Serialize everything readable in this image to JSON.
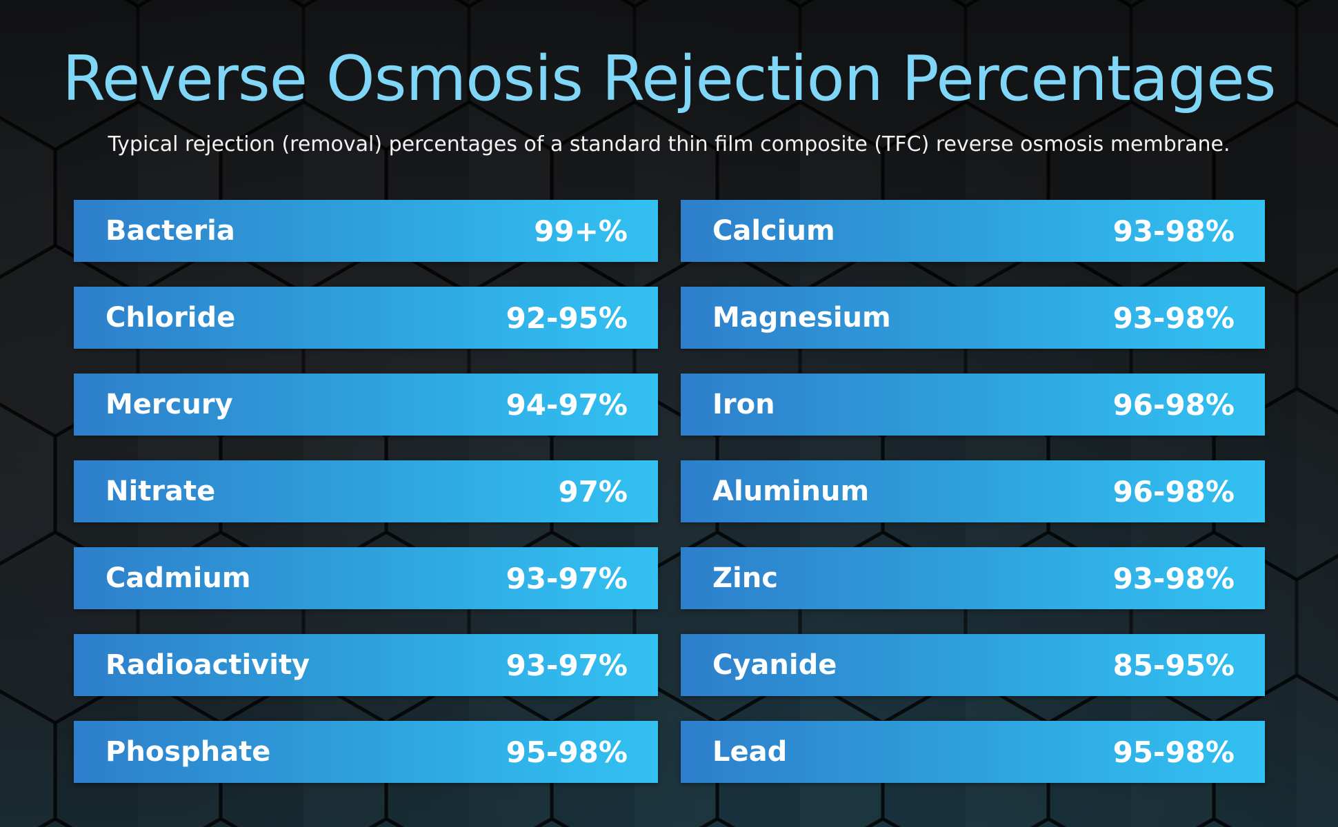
{
  "header": {
    "title": "Reverse Osmosis Rejection Percentages",
    "subtitle": "Typical rejection (removal) percentages of a standard thin film composite (TFC) reverse osmosis membrane."
  },
  "theme": {
    "title_color": "#7fd6f6",
    "row_gradient_start": "#2e7fcb",
    "row_gradient_end": "#33c1f1",
    "background": "#121416"
  },
  "left_column": [
    {
      "name": "Bacteria",
      "value": "99+%"
    },
    {
      "name": "Chloride",
      "value": "92-95%"
    },
    {
      "name": "Mercury",
      "value": "94-97%"
    },
    {
      "name": "Nitrate",
      "value": "97%"
    },
    {
      "name": "Cadmium",
      "value": "93-97%"
    },
    {
      "name": "Radioactivity",
      "value": "93-97%"
    },
    {
      "name": "Phosphate",
      "value": "95-98%"
    }
  ],
  "right_column": [
    {
      "name": "Calcium",
      "value": "93-98%"
    },
    {
      "name": "Magnesium",
      "value": "93-98%"
    },
    {
      "name": "Iron",
      "value": "96-98%"
    },
    {
      "name": "Aluminum",
      "value": "96-98%"
    },
    {
      "name": "Zinc",
      "value": "93-98%"
    },
    {
      "name": "Cyanide",
      "value": "85-95%"
    },
    {
      "name": "Lead",
      "value": "95-98%"
    }
  ]
}
